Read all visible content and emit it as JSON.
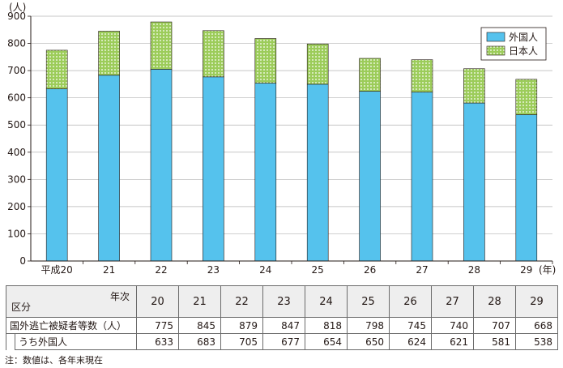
{
  "chart_data": {
    "type": "bar",
    "stacked": true,
    "categories": [
      "平成20",
      "21",
      "22",
      "23",
      "24",
      "25",
      "26",
      "27",
      "28",
      "29"
    ],
    "x_unit": "(年)",
    "y_unit": "(人)",
    "ylim": [
      0,
      900
    ],
    "yticks": [
      0,
      100,
      200,
      300,
      400,
      500,
      600,
      700,
      800,
      900
    ],
    "grid": true,
    "legend_position": "top-right",
    "series": [
      {
        "name": "外国人",
        "color": "#55c2ed",
        "values": [
          633,
          683,
          705,
          677,
          654,
          650,
          624,
          621,
          581,
          538
        ]
      },
      {
        "name": "日本人",
        "color": "#9ccc5a",
        "values": [
          142,
          162,
          174,
          170,
          164,
          148,
          121,
          119,
          126,
          130
        ]
      }
    ]
  },
  "table": {
    "header_year": "年次",
    "header_category": "区分",
    "years": [
      "20",
      "21",
      "22",
      "23",
      "24",
      "25",
      "26",
      "27",
      "28",
      "29"
    ],
    "rows": [
      {
        "label": "国外逃亡被疑者等数（人）",
        "values": [
          "775",
          "845",
          "879",
          "847",
          "818",
          "798",
          "745",
          "740",
          "707",
          "668"
        ]
      },
      {
        "label": "うち外国人",
        "values": [
          "633",
          "683",
          "705",
          "677",
          "654",
          "650",
          "624",
          "621",
          "581",
          "538"
        ]
      }
    ]
  },
  "note": "注：数値は、各年末現在"
}
